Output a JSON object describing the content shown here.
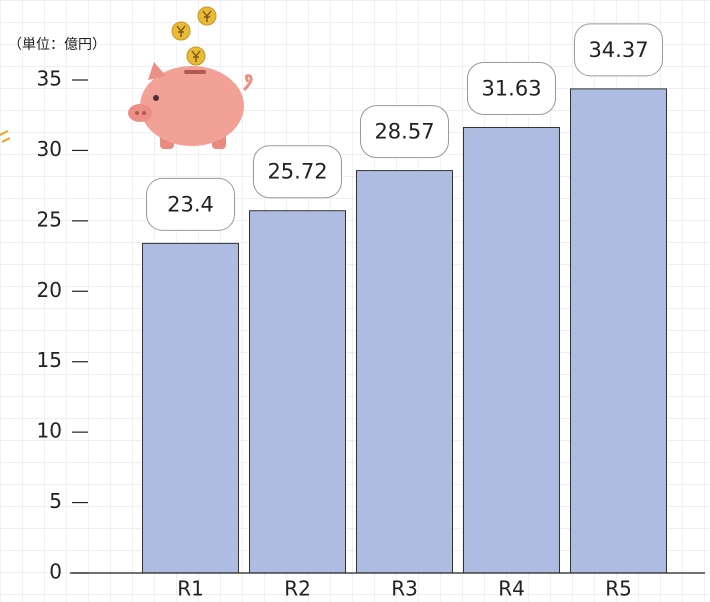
{
  "chart_data": {
    "type": "bar",
    "unit_label": "（単位：億円）",
    "categories": [
      "R1",
      "R2",
      "R3",
      "R4",
      "R5"
    ],
    "values": [
      23.4,
      25.72,
      28.57,
      31.63,
      34.37
    ],
    "color": "#aebce1",
    "ylim": [
      0,
      35
    ],
    "yticks": [
      0,
      5,
      10,
      15,
      20,
      25,
      30,
      35
    ]
  }
}
